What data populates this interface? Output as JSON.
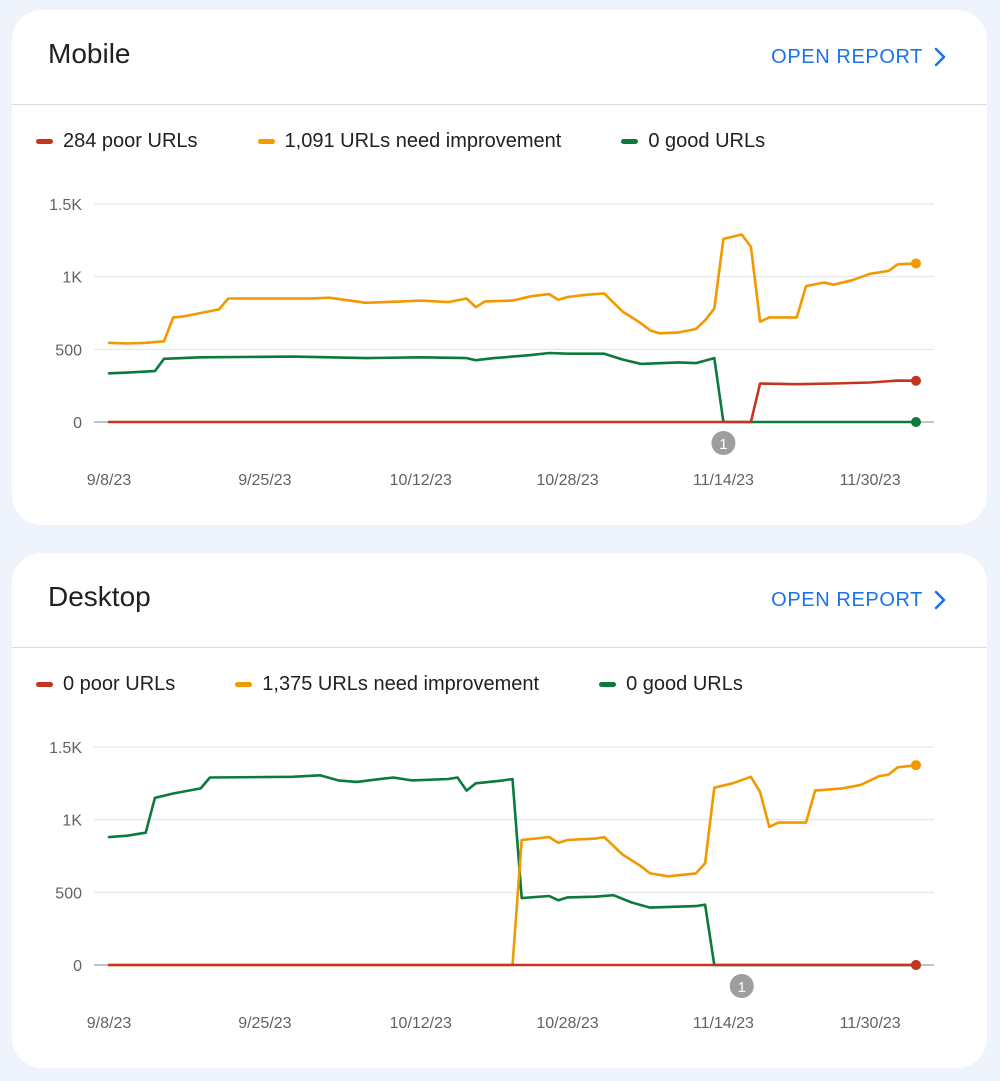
{
  "colors": {
    "poor": "#c5341f",
    "needs_improvement": "#f29900",
    "good": "#0b7a3b",
    "accent": "#1a73e8",
    "annotation": "#9e9e9e"
  },
  "icons": {
    "open_report": "chevron-right-icon",
    "annotation": "annotation-marker-icon"
  },
  "panels": [
    {
      "title": "Mobile",
      "open_report": "OPEN REPORT",
      "legend": [
        {
          "label": "284 poor URLs",
          "key": "poor"
        },
        {
          "label": "1,091 URLs need improvement",
          "key": "needs_improvement"
        },
        {
          "label": "0 good URLs",
          "key": "good"
        }
      ],
      "annotation_label": "1"
    },
    {
      "title": "Desktop",
      "open_report": "OPEN REPORT",
      "legend": [
        {
          "label": "0 poor URLs",
          "key": "poor"
        },
        {
          "label": "1,375 URLs need improvement",
          "key": "needs_improvement"
        },
        {
          "label": "0 good URLs",
          "key": "good"
        }
      ],
      "annotation_label": "1"
    }
  ],
  "chart_data": [
    {
      "type": "line",
      "title": "Mobile",
      "x_start": "9/8/23",
      "x_end": "12/5/23",
      "x_ticks": [
        "9/8/23",
        "9/25/23",
        "10/12/23",
        "10/28/23",
        "11/14/23",
        "11/30/23"
      ],
      "y_ticks": [
        "0",
        "500",
        "1K",
        "1.5K"
      ],
      "ylim": [
        0,
        1500
      ],
      "grid": true,
      "legend_position": "top-left",
      "annotation": {
        "date": "11/14/23",
        "label": "1"
      },
      "series": [
        {
          "key": "poor",
          "points": [
            [
              "9/8/23",
              0
            ],
            [
              "11/17/23",
              0
            ],
            [
              "11/18/23",
              265
            ],
            [
              "11/22/23",
              260
            ],
            [
              "11/26/23",
              265
            ],
            [
              "11/30/23",
              272
            ],
            [
              "12/3/23",
              285
            ],
            [
              "12/5/23",
              284
            ]
          ]
        },
        {
          "key": "needs_improvement",
          "points": [
            [
              "9/8/23",
              545
            ],
            [
              "9/10/23",
              540
            ],
            [
              "9/12/23",
              545
            ],
            [
              "9/14/23",
              555
            ],
            [
              "9/15/23",
              720
            ],
            [
              "9/16/23",
              725
            ],
            [
              "9/18/23",
              750
            ],
            [
              "9/20/23",
              775
            ],
            [
              "9/21/23",
              850
            ],
            [
              "9/23/23",
              850
            ],
            [
              "9/30/23",
              850
            ],
            [
              "10/2/23",
              855
            ],
            [
              "10/6/23",
              820
            ],
            [
              "10/10/23",
              830
            ],
            [
              "10/12/23",
              835
            ],
            [
              "10/15/23",
              825
            ],
            [
              "10/17/23",
              850
            ],
            [
              "10/18/23",
              790
            ],
            [
              "10/19/23",
              830
            ],
            [
              "10/22/23",
              835
            ],
            [
              "10/24/23",
              865
            ],
            [
              "10/26/23",
              880
            ],
            [
              "10/27/23",
              840
            ],
            [
              "10/28/23",
              860
            ],
            [
              "10/30/23",
              875
            ],
            [
              "11/1/23",
              885
            ],
            [
              "11/3/23",
              760
            ],
            [
              "11/5/23",
              680
            ],
            [
              "11/6/23",
              630
            ],
            [
              "11/7/23",
              610
            ],
            [
              "11/9/23",
              615
            ],
            [
              "11/11/23",
              640
            ],
            [
              "11/12/23",
              700
            ],
            [
              "11/13/23",
              780
            ],
            [
              "11/14/23",
              1260
            ],
            [
              "11/16/23",
              1290
            ],
            [
              "11/17/23",
              1205
            ],
            [
              "11/18/23",
              690
            ],
            [
              "11/19/23",
              720
            ],
            [
              "11/22/23",
              720
            ],
            [
              "11/23/23",
              935
            ],
            [
              "11/25/23",
              960
            ],
            [
              "11/26/23",
              945
            ],
            [
              "11/28/23",
              975
            ],
            [
              "11/30/23",
              1020
            ],
            [
              "12/2/23",
              1040
            ],
            [
              "12/3/23",
              1085
            ],
            [
              "12/5/23",
              1091
            ]
          ]
        },
        {
          "key": "good",
          "points": [
            [
              "9/8/23",
              335
            ],
            [
              "9/10/23",
              340
            ],
            [
              "9/13/23",
              350
            ],
            [
              "9/14/23",
              435
            ],
            [
              "9/18/23",
              445
            ],
            [
              "9/28/23",
              450
            ],
            [
              "10/6/23",
              440
            ],
            [
              "10/12/23",
              445
            ],
            [
              "10/17/23",
              440
            ],
            [
              "10/18/23",
              425
            ],
            [
              "10/20/23",
              440
            ],
            [
              "10/24/23",
              460
            ],
            [
              "10/26/23",
              475
            ],
            [
              "10/28/23",
              470
            ],
            [
              "11/1/23",
              470
            ],
            [
              "11/3/23",
              430
            ],
            [
              "11/5/23",
              400
            ],
            [
              "11/9/23",
              410
            ],
            [
              "11/11/23",
              405
            ],
            [
              "11/13/23",
              440
            ],
            [
              "11/14/23",
              0
            ],
            [
              "12/5/23",
              0
            ]
          ]
        }
      ]
    },
    {
      "type": "line",
      "title": "Desktop",
      "x_start": "9/8/23",
      "x_end": "12/5/23",
      "x_ticks": [
        "9/8/23",
        "9/25/23",
        "10/12/23",
        "10/28/23",
        "11/14/23",
        "11/30/23"
      ],
      "y_ticks": [
        "0",
        "500",
        "1K",
        "1.5K"
      ],
      "ylim": [
        0,
        1500
      ],
      "grid": true,
      "legend_position": "top-left",
      "annotation": {
        "date": "11/16/23",
        "label": "1"
      },
      "series": [
        {
          "key": "poor",
          "points": [
            [
              "9/8/23",
              0
            ],
            [
              "12/5/23",
              0
            ]
          ]
        },
        {
          "key": "needs_improvement",
          "points": [
            [
              "9/8/23",
              0
            ],
            [
              "10/22/23",
              0
            ],
            [
              "10/23/23",
              860
            ],
            [
              "10/26/23",
              880
            ],
            [
              "10/27/23",
              840
            ],
            [
              "10/28/23",
              860
            ],
            [
              "10/31/23",
              870
            ],
            [
              "11/1/23",
              880
            ],
            [
              "11/3/23",
              760
            ],
            [
              "11/5/23",
              680
            ],
            [
              "11/6/23",
              630
            ],
            [
              "11/8/23",
              610
            ],
            [
              "11/11/23",
              630
            ],
            [
              "11/12/23",
              700
            ],
            [
              "11/13/23",
              1220
            ],
            [
              "11/15/23",
              1250
            ],
            [
              "11/17/23",
              1295
            ],
            [
              "11/18/23",
              1190
            ],
            [
              "11/19/23",
              950
            ],
            [
              "11/20/23",
              980
            ],
            [
              "11/23/23",
              980
            ],
            [
              "11/24/23",
              1200
            ],
            [
              "11/27/23",
              1215
            ],
            [
              "11/29/23",
              1240
            ],
            [
              "12/1/23",
              1300
            ],
            [
              "12/2/23",
              1310
            ],
            [
              "12/3/23",
              1360
            ],
            [
              "12/5/23",
              1375
            ]
          ]
        },
        {
          "key": "good",
          "points": [
            [
              "9/8/23",
              880
            ],
            [
              "9/10/23",
              890
            ],
            [
              "9/12/23",
              910
            ],
            [
              "9/13/23",
              1150
            ],
            [
              "9/15/23",
              1180
            ],
            [
              "9/18/23",
              1215
            ],
            [
              "9/19/23",
              1290
            ],
            [
              "9/28/23",
              1295
            ],
            [
              "10/1/23",
              1305
            ],
            [
              "10/3/23",
              1270
            ],
            [
              "10/5/23",
              1260
            ],
            [
              "10/9/23",
              1290
            ],
            [
              "10/11/23",
              1270
            ],
            [
              "10/15/23",
              1280
            ],
            [
              "10/16/23",
              1290
            ],
            [
              "10/17/23",
              1200
            ],
            [
              "10/18/23",
              1250
            ],
            [
              "10/21/23",
              1270
            ],
            [
              "10/22/23",
              1280
            ],
            [
              "10/23/23",
              460
            ],
            [
              "10/26/23",
              475
            ],
            [
              "10/27/23",
              445
            ],
            [
              "10/28/23",
              465
            ],
            [
              "10/31/23",
              470
            ],
            [
              "11/2/23",
              480
            ],
            [
              "11/4/23",
              430
            ],
            [
              "11/6/23",
              395
            ],
            [
              "11/8/23",
              400
            ],
            [
              "11/11/23",
              405
            ],
            [
              "11/12/23",
              415
            ],
            [
              "11/13/23",
              0
            ],
            [
              "12/5/23",
              0
            ]
          ]
        }
      ]
    }
  ]
}
